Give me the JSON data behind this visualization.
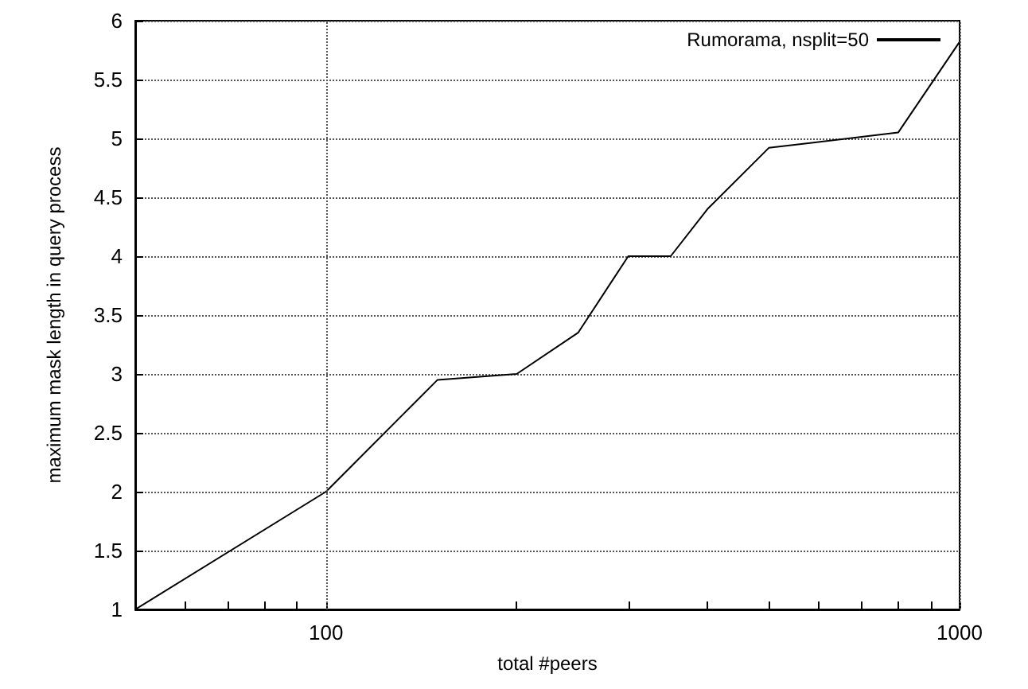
{
  "chart_data": {
    "type": "line",
    "xlabel": "total #peers",
    "ylabel": "maximum mask length in query process",
    "log": "x",
    "grid": true,
    "legend": "top right",
    "marker": "none",
    "line_style": "solid",
    "xlim": [
      50,
      1000
    ],
    "xticks": [
      {
        "value": 60,
        "label": null
      },
      {
        "value": 70,
        "label": null
      },
      {
        "value": 80,
        "label": null
      },
      {
        "value": 90,
        "label": null
      },
      100,
      {
        "value": 200,
        "label": null
      },
      {
        "value": 300,
        "label": null
      },
      {
        "value": 400,
        "label": null
      },
      {
        "value": 500,
        "label": null
      },
      {
        "value": 600,
        "label": null
      },
      {
        "value": 700,
        "label": null
      },
      {
        "value": 800,
        "label": null
      },
      {
        "value": 900,
        "label": null
      },
      1000
    ],
    "ylim": [
      1,
      6
    ],
    "yticks": [
      1,
      1.5,
      2,
      2.5,
      3,
      3.5,
      4,
      4.5,
      5,
      5.5,
      6
    ],
    "x": [
      50,
      100,
      150,
      200,
      250,
      300,
      350,
      400,
      500,
      800,
      1000
    ],
    "series": [
      {
        "name": "Rumorama, nsplit=50",
        "color": "#000000",
        "values": [
          1,
          2,
          2.95,
          3,
          3.35,
          4,
          4,
          4.4,
          4.92,
          5.05,
          5.82
        ]
      }
    ]
  }
}
